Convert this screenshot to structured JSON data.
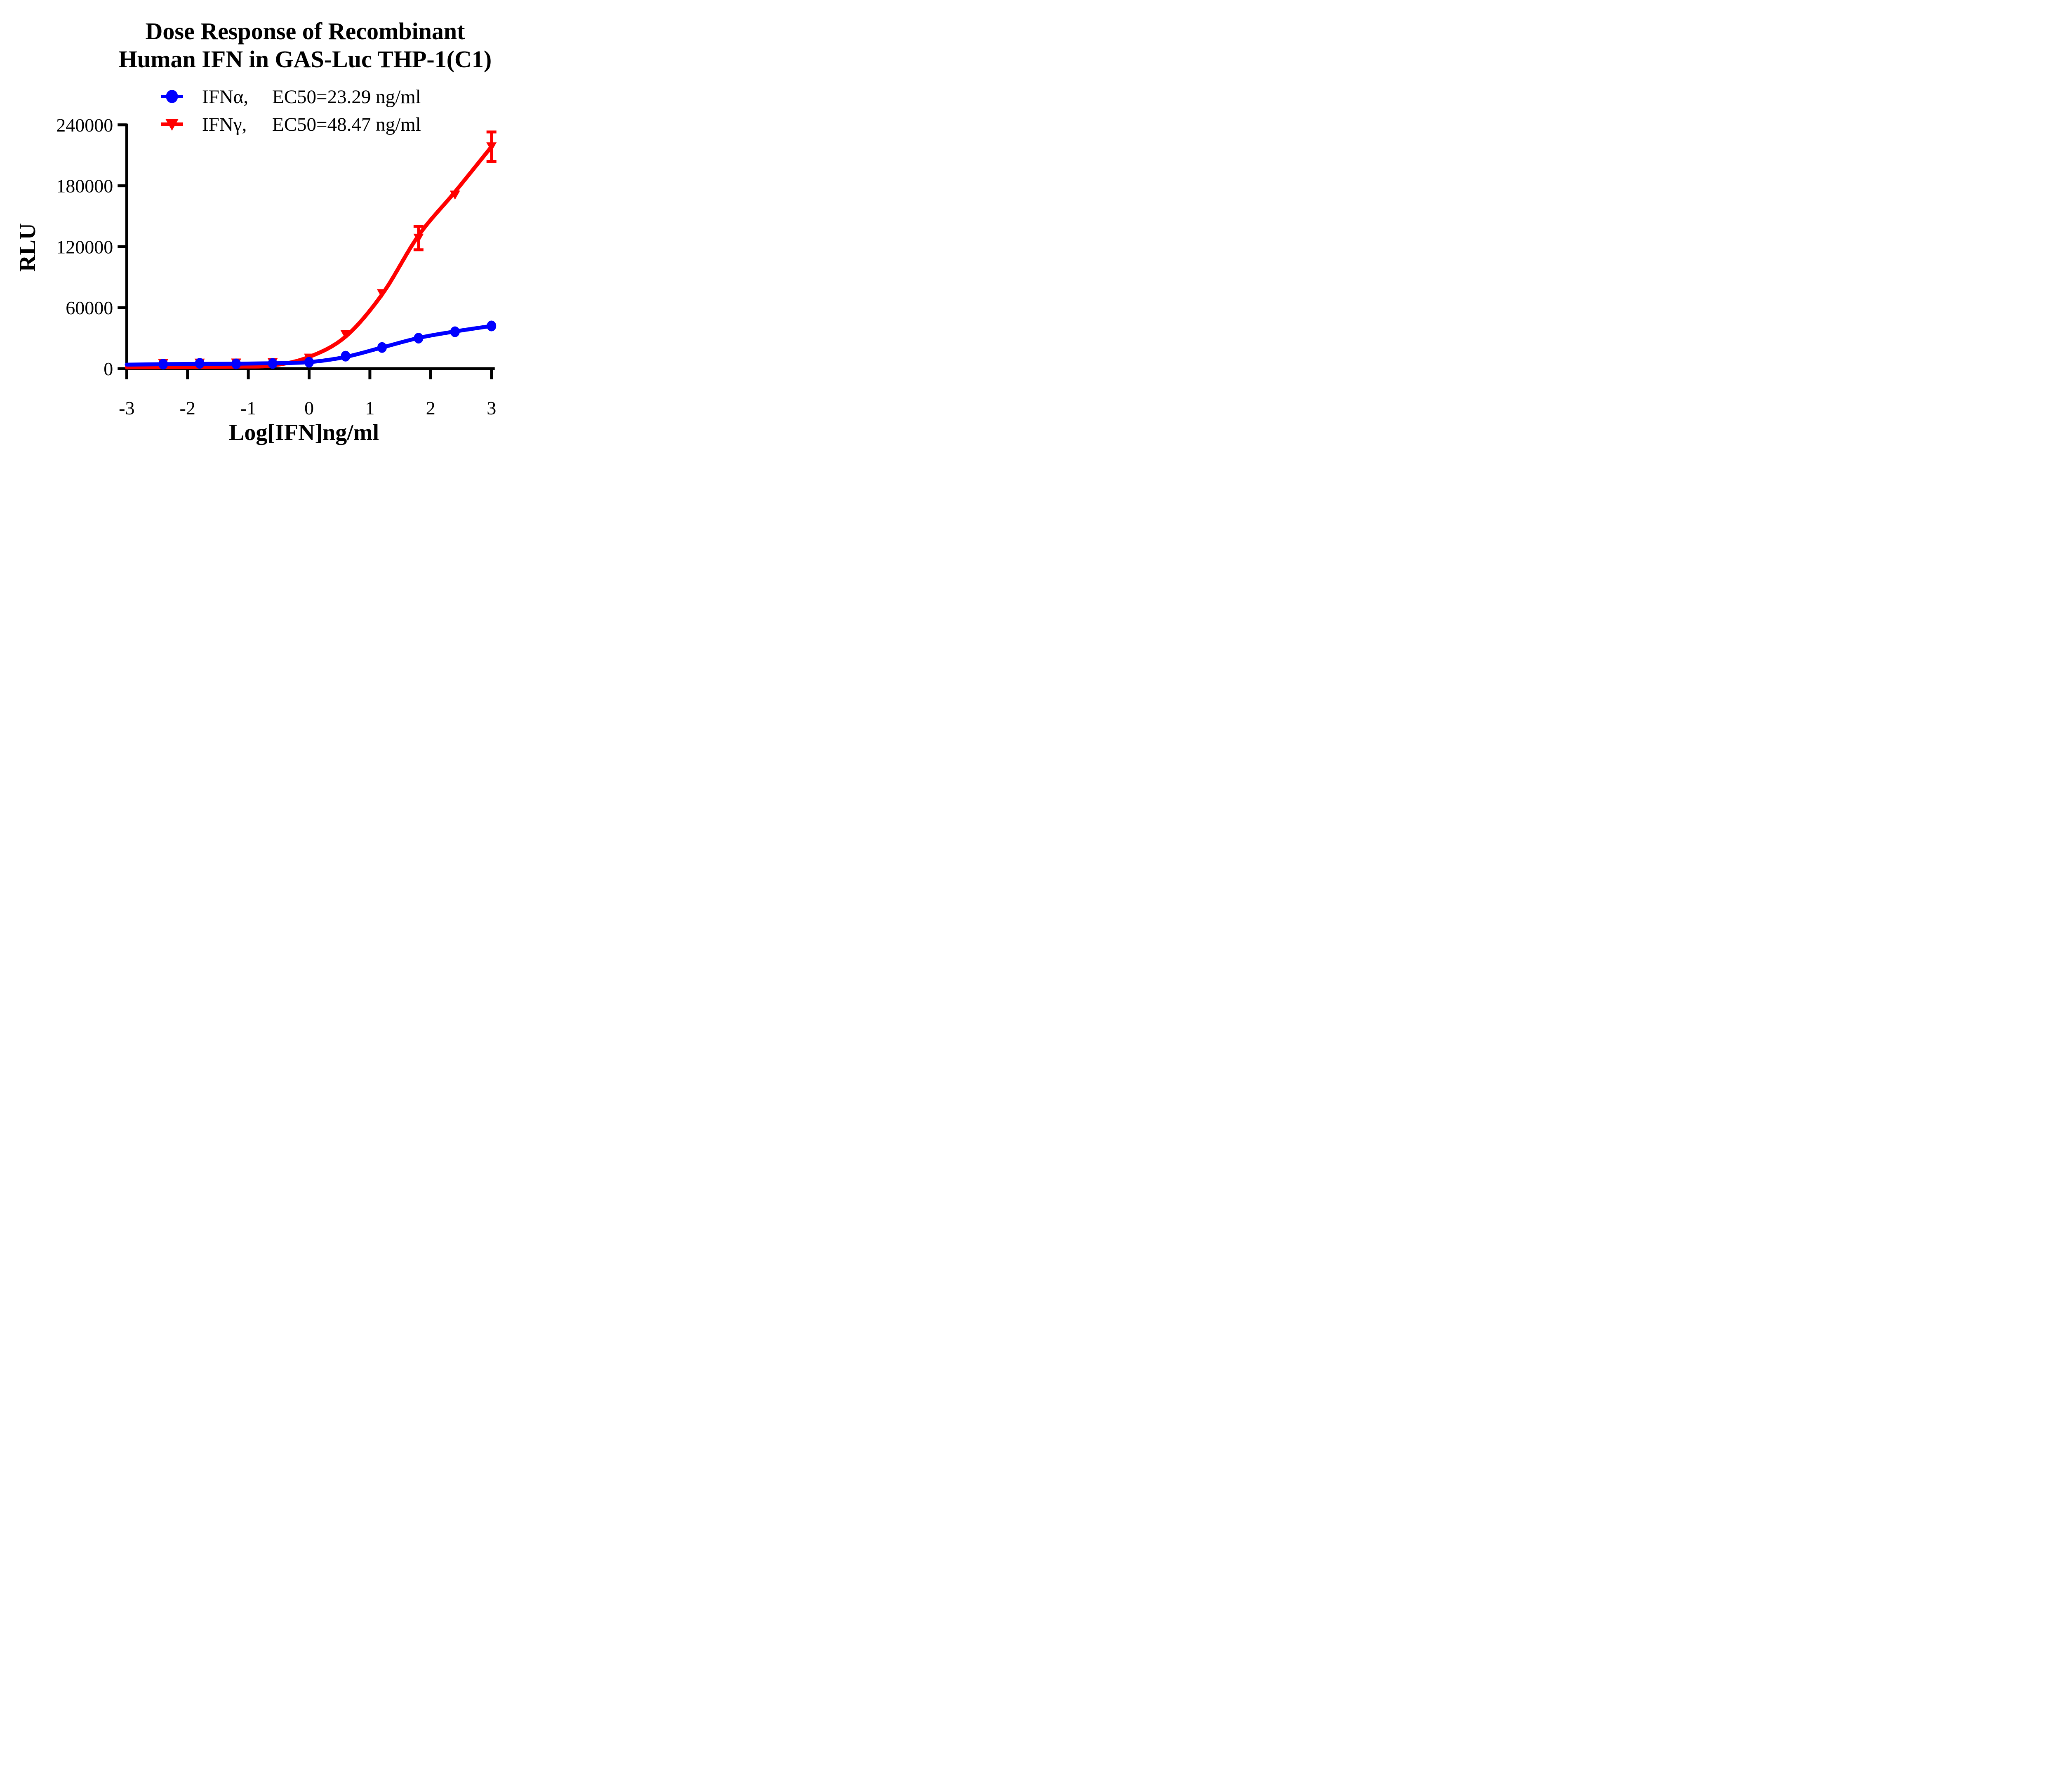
{
  "title": {
    "line1": "Dose Response of Recombinant",
    "line2": "Human IFN in GAS-Luc THP-1(C1)"
  },
  "legend": [
    {
      "name": "IFNα,",
      "ec50_text": "EC50=23.29 ng/ml",
      "color": "#0000ff",
      "marker": "circle"
    },
    {
      "name": "IFNγ,",
      "ec50_text": "EC50=48.47 ng/ml",
      "color": "#ff0000",
      "marker": "triangle-down"
    }
  ],
  "chart_data": {
    "type": "line",
    "title": "Dose Response of Recombinant Human IFN in GAS-Luc THP-1(C1)",
    "xlabel": "Log[IFN]ng/ml",
    "ylabel": "RLU",
    "xlim": [
      -3,
      3
    ],
    "ylim": [
      0,
      240000
    ],
    "x_ticks": [
      -3,
      -2,
      -1,
      0,
      1,
      2,
      3
    ],
    "y_ticks": [
      0,
      60000,
      120000,
      180000,
      240000
    ],
    "grid": false,
    "legend_position": "top",
    "x": [
      -2.4,
      -1.8,
      -1.2,
      -0.6,
      0,
      0.6,
      1.2,
      1.8,
      2.4,
      3.0
    ],
    "series": [
      {
        "name": "IFNγ",
        "ec50_ng_ml": 48.47,
        "color": "#ff0000",
        "marker": "triangle-down",
        "values": [
          5200,
          5600,
          5700,
          6200,
          10500,
          33700,
          74000,
          128500,
          171000,
          218500
        ],
        "errors": [
          null,
          null,
          null,
          null,
          null,
          null,
          null,
          11500,
          null,
          14500
        ],
        "fit_curve": {
          "x": [
            -3,
            -2.4,
            -1.8,
            -1.2,
            -0.6,
            0,
            0.6,
            1.2,
            1.8,
            2.4,
            3.0
          ],
          "values": [
            1300,
            1400,
            1550,
            1950,
            3100,
            11500,
            31500,
            73000,
            131000,
            174000,
            218500
          ]
        }
      },
      {
        "name": "IFNα",
        "ec50_ng_ml": 23.29,
        "color": "#0000ff",
        "marker": "circle",
        "values": [
          4400,
          5200,
          4700,
          5100,
          6300,
          12300,
          20800,
          30000,
          36300,
          42000
        ],
        "errors": [
          null,
          null,
          null,
          null,
          null,
          null,
          null,
          null,
          null,
          null
        ],
        "fit_curve": {
          "x": [
            -3,
            -2.4,
            -1.8,
            -1.2,
            -0.6,
            0,
            0.6,
            1.2,
            1.8,
            2.4,
            3.0
          ],
          "values": [
            3900,
            4400,
            4650,
            4850,
            5300,
            6400,
            11500,
            20800,
            30200,
            36600,
            42000
          ]
        }
      }
    ]
  }
}
